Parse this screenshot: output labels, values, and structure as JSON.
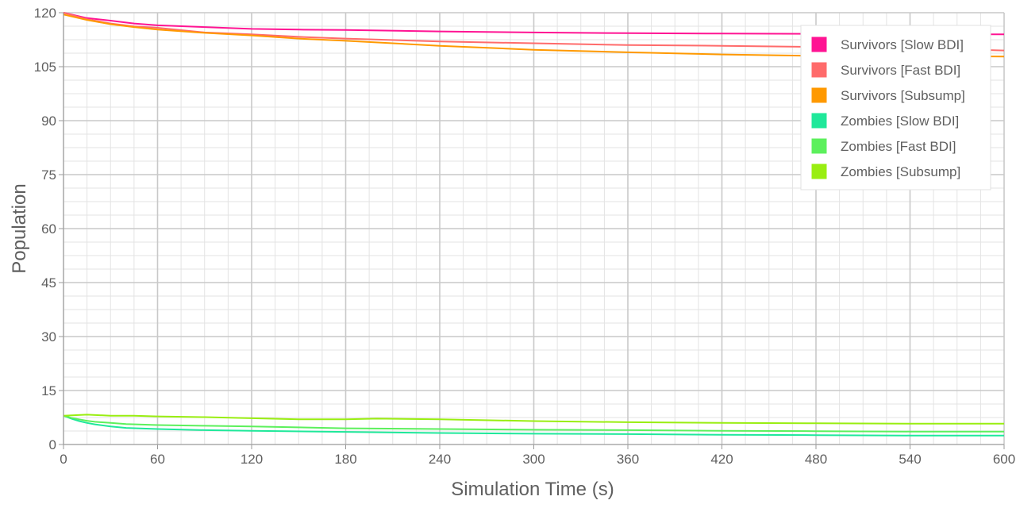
{
  "chart_data": {
    "type": "line",
    "xlabel": "Simulation Time (s)",
    "ylabel": "Population",
    "xlim": [
      0,
      600
    ],
    "ylim": [
      0,
      120
    ],
    "x_ticks": [
      0,
      60,
      120,
      180,
      240,
      300,
      360,
      420,
      480,
      540,
      600
    ],
    "y_ticks": [
      0,
      15,
      30,
      45,
      60,
      75,
      90,
      105,
      120
    ],
    "grid": true,
    "legend_position": "top-right",
    "series": [
      {
        "name": "Survivors [Slow BDI]",
        "color": "#ff1493",
        "x": [
          0,
          15,
          30,
          45,
          60,
          90,
          120,
          150,
          180,
          240,
          300,
          360,
          420,
          480,
          540,
          600
        ],
        "y": [
          120,
          118.5,
          117.8,
          117,
          116.5,
          116,
          115.5,
          115.3,
          115.2,
          114.8,
          114.5,
          114.3,
          114.2,
          114.1,
          114,
          114
        ]
      },
      {
        "name": "Survivors [Fast BDI]",
        "color": "#ff6b6b",
        "x": [
          0,
          15,
          30,
          45,
          60,
          90,
          120,
          150,
          180,
          240,
          300,
          360,
          420,
          480,
          540,
          600
        ],
        "y": [
          120,
          118.2,
          117,
          116.2,
          115.8,
          114.5,
          114,
          113.3,
          112.8,
          112,
          111.5,
          111,
          110.8,
          110.5,
          110.2,
          109.5
        ]
      },
      {
        "name": "Survivors [Subsump]",
        "color": "#ff9900",
        "x": [
          0,
          15,
          30,
          45,
          60,
          90,
          120,
          150,
          180,
          240,
          300,
          360,
          420,
          480,
          540,
          600
        ],
        "y": [
          119.5,
          118,
          116.8,
          116,
          115.3,
          114.4,
          113.7,
          112.8,
          112.2,
          110.8,
          109.7,
          109,
          108.4,
          108,
          108,
          107.8
        ]
      },
      {
        "name": "Zombies [Slow BDI]",
        "color": "#1fe89a",
        "x": [
          0,
          5,
          10,
          15,
          20,
          30,
          40,
          60,
          90,
          120,
          180,
          240,
          300,
          360,
          420,
          480,
          540,
          600
        ],
        "y": [
          8,
          7.2,
          6.5,
          6,
          5.6,
          5,
          4.6,
          4.3,
          4,
          3.8,
          3.5,
          3.2,
          3,
          2.9,
          2.7,
          2.6,
          2.5,
          2.5
        ]
      },
      {
        "name": "Zombies [Fast BDI]",
        "color": "#5cf05c",
        "x": [
          0,
          5,
          10,
          15,
          20,
          30,
          40,
          60,
          90,
          120,
          180,
          240,
          300,
          360,
          420,
          480,
          540,
          600
        ],
        "y": [
          8,
          7.4,
          7,
          6.6,
          6.3,
          6,
          5.7,
          5.4,
          5.2,
          5,
          4.5,
          4.3,
          4.1,
          4,
          3.8,
          3.7,
          3.6,
          3.6
        ]
      },
      {
        "name": "Zombies [Subsump]",
        "color": "#99ee11",
        "x": [
          0,
          15,
          30,
          45,
          60,
          90,
          120,
          150,
          180,
          200,
          240,
          300,
          360,
          420,
          480,
          540,
          600
        ],
        "y": [
          8,
          8.3,
          8,
          8,
          7.8,
          7.6,
          7.3,
          7,
          7,
          7.2,
          7,
          6.5,
          6.2,
          6,
          5.9,
          5.8,
          5.8
        ]
      }
    ]
  }
}
